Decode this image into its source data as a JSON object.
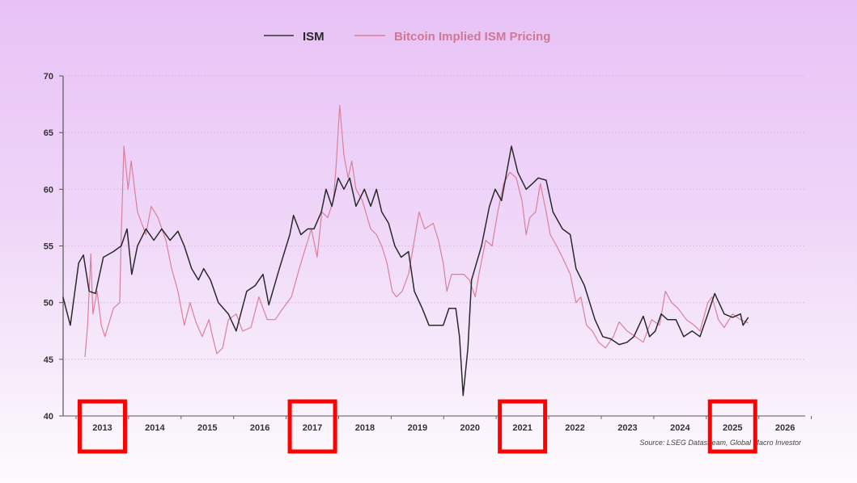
{
  "chart_data": {
    "type": "line",
    "title": "",
    "xlabel": "",
    "ylabel": "",
    "xlim": [
      2012.7,
      2027
    ],
    "ylim": [
      40,
      70
    ],
    "y_ticks": [
      "40",
      "45",
      "50",
      "55",
      "60",
      "65",
      "70"
    ],
    "x_ticks": [
      "2013",
      "2014",
      "2015",
      "2016",
      "2017",
      "2018",
      "2019",
      "2020",
      "2021",
      "2022",
      "2023",
      "2024",
      "2025",
      "2026"
    ],
    "grid": true,
    "legend_position": "top-center",
    "highlighted_years": [
      "2013",
      "2017",
      "2021",
      "2025"
    ],
    "source": "Source: LSEG Datastream, Global Macro Investor",
    "series": [
      {
        "name": "ISM",
        "color": "#2a2a2a",
        "x": [
          2012.75,
          2012.89,
          2013.05,
          2013.14,
          2013.25,
          2013.37,
          2013.52,
          2013.71,
          2013.86,
          2013.97,
          2014.06,
          2014.17,
          2014.33,
          2014.48,
          2014.63,
          2014.79,
          2014.94,
          2015.06,
          2015.2,
          2015.33,
          2015.43,
          2015.56,
          2015.71,
          2015.9,
          2016.05,
          2016.25,
          2016.41,
          2016.56,
          2016.67,
          2016.87,
          2017.07,
          2017.14,
          2017.28,
          2017.41,
          2017.53,
          2017.67,
          2017.76,
          2017.87,
          2017.99,
          2018.1,
          2018.21,
          2018.33,
          2018.49,
          2018.61,
          2018.72,
          2018.82,
          2018.95,
          2019.07,
          2019.19,
          2019.33,
          2019.44,
          2019.59,
          2019.72,
          2019.99,
          2020.1,
          2020.23,
          2020.3,
          2020.37,
          2020.46,
          2020.53,
          2020.72,
          2020.87,
          2020.98,
          2021.1,
          2021.29,
          2021.41,
          2021.57,
          2021.69,
          2021.8,
          2021.95,
          2022.08,
          2022.26,
          2022.41,
          2022.52,
          2022.68,
          2022.88,
          2023.03,
          2023.18,
          2023.34,
          2023.49,
          2023.62,
          2023.8,
          2023.92,
          2024.03,
          2024.14,
          2024.26,
          2024.42,
          2024.57,
          2024.73,
          2024.88,
          2025.03,
          2025.16,
          2025.34,
          2025.5,
          2025.65,
          2025.7,
          2025.8
        ],
        "values": [
          50.5,
          48,
          53.5,
          54.2,
          51,
          50.8,
          54,
          54.5,
          55,
          56.5,
          52.5,
          55,
          56.5,
          55.5,
          56.5,
          55.5,
          56.3,
          55,
          53,
          52,
          53,
          52,
          50,
          49,
          47.5,
          51,
          51.5,
          52.5,
          49.8,
          53,
          56,
          57.7,
          56,
          56.5,
          56.5,
          58,
          60,
          58.5,
          61,
          60,
          61,
          58.5,
          60,
          58.5,
          60,
          58,
          57,
          55,
          54,
          54.5,
          51,
          49.5,
          48,
          48,
          49.5,
          49.5,
          47,
          41.8,
          46,
          52,
          55,
          58.5,
          60,
          59,
          63.8,
          61.5,
          60,
          60.5,
          61,
          60.8,
          58,
          56.5,
          56,
          53,
          51.5,
          48.5,
          47,
          46.8,
          46.3,
          46.5,
          47,
          48.8,
          47,
          47.5,
          49,
          48.5,
          48.5,
          47,
          47.5,
          47,
          49,
          50.8,
          49,
          48.7,
          49,
          48,
          48.7
        ]
      },
      {
        "name": "Bitcoin Implied ISM Pricing",
        "color": "#d9809a",
        "x": [
          2013.17,
          2013.22,
          2013.28,
          2013.32,
          2013.4,
          2013.48,
          2013.55,
          2013.71,
          2013.83,
          2013.86,
          2013.91,
          2013.99,
          2014.05,
          2014.17,
          2014.33,
          2014.43,
          2014.56,
          2014.71,
          2014.82,
          2014.94,
          2015.06,
          2015.17,
          2015.28,
          2015.4,
          2015.53,
          2015.6,
          2015.68,
          2015.79,
          2015.9,
          2016.05,
          2016.17,
          2016.33,
          2016.48,
          2016.64,
          2016.79,
          2016.94,
          2017.1,
          2017.25,
          2017.38,
          2017.48,
          2017.59,
          2017.68,
          2017.79,
          2017.9,
          2017.95,
          2018.02,
          2018.1,
          2018.18,
          2018.25,
          2018.33,
          2018.45,
          2018.61,
          2018.72,
          2018.82,
          2018.92,
          2019.02,
          2019.1,
          2019.21,
          2019.33,
          2019.44,
          2019.53,
          2019.64,
          2019.8,
          2019.9,
          2019.99,
          2020.06,
          2020.15,
          2020.26,
          2020.38,
          2020.49,
          2020.6,
          2020.67,
          2020.8,
          2020.92,
          2021.03,
          2021.14,
          2021.26,
          2021.38,
          2021.49,
          2021.57,
          2021.64,
          2021.75,
          2021.84,
          2021.95,
          2022.03,
          2022.15,
          2022.26,
          2022.41,
          2022.52,
          2022.61,
          2022.72,
          2022.83,
          2022.95,
          2023.08,
          2023.23,
          2023.34,
          2023.49,
          2023.65,
          2023.8,
          2023.96,
          2024.11,
          2024.22,
          2024.34,
          2024.46,
          2024.62,
          2024.77,
          2024.88,
          2025.03,
          2025.11,
          2025.23,
          2025.34,
          2025.5,
          2025.65,
          2025.8
        ],
        "values": [
          45.2,
          48,
          54.3,
          49,
          51,
          48,
          47,
          49.5,
          50,
          56,
          63.8,
          60,
          62.5,
          58,
          56,
          58.5,
          57.5,
          55.5,
          53,
          51,
          48,
          50,
          48.3,
          47,
          48.5,
          47,
          45.5,
          46,
          48.5,
          49,
          47.5,
          47.8,
          50.5,
          48.5,
          48.5,
          49.5,
          50.5,
          53,
          55,
          56.5,
          54,
          58,
          57.5,
          59,
          62,
          67.4,
          63,
          61,
          62.5,
          60,
          59,
          56.5,
          56,
          55,
          53.5,
          51,
          50.5,
          51,
          52.5,
          55.5,
          58,
          56.5,
          57,
          55.5,
          53.5,
          51,
          52.5,
          52.5,
          52.5,
          52,
          50.5,
          52.5,
          55.5,
          55,
          58,
          60.5,
          61.5,
          61,
          59,
          56,
          57.5,
          58,
          60.5,
          58,
          56,
          55,
          54,
          52.5,
          50,
          50.5,
          48,
          47.5,
          46.5,
          46,
          47,
          48.3,
          47.5,
          47,
          46.5,
          48.5,
          48,
          51,
          50,
          49.5,
          48.5,
          48,
          47.5,
          50,
          50.5,
          48.5,
          47.8,
          49,
          48.5,
          48.2
        ]
      }
    ]
  }
}
